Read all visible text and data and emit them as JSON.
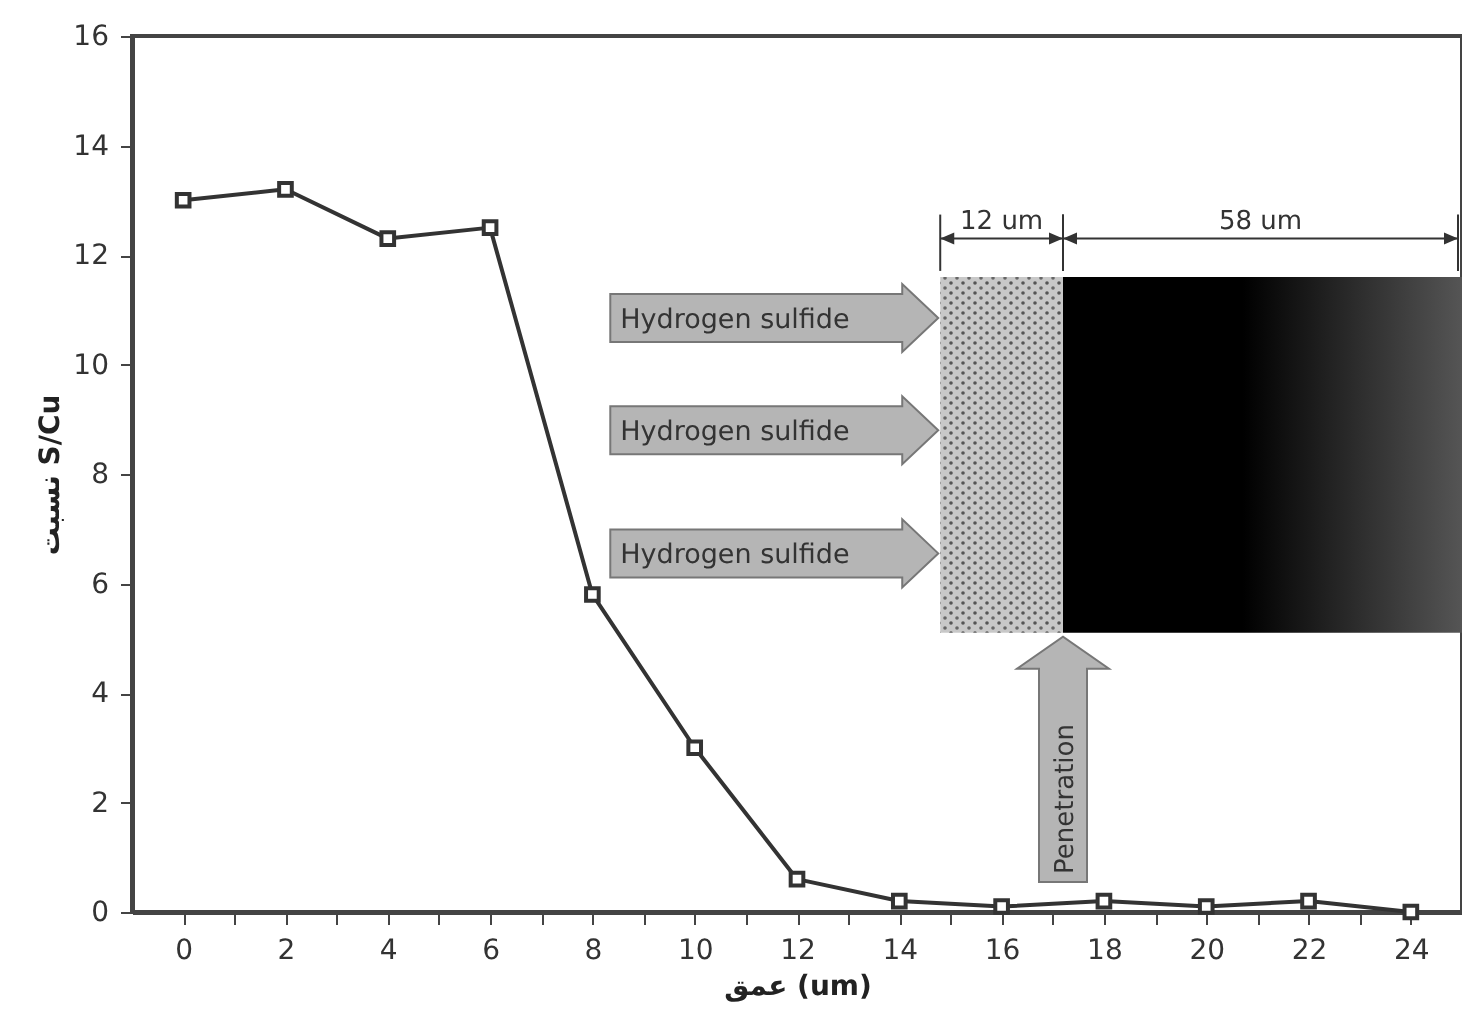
{
  "chart_data": {
    "type": "line",
    "xlabel": "عمق (um)",
    "ylabel": "نسبت S/Cu",
    "x": [
      0,
      2,
      4,
      6,
      8,
      10,
      12,
      14,
      16,
      18,
      20,
      22,
      24
    ],
    "series": [
      {
        "color": "#333333",
        "values": [
          13.0,
          13.2,
          12.3,
          12.5,
          5.8,
          3.0,
          0.6,
          0.2,
          0.1,
          0.2,
          0.1,
          0.2,
          0.0
        ]
      }
    ],
    "xlim": [
      -1,
      25
    ],
    "ylim": [
      0,
      16
    ],
    "xticks": [
      0,
      {
        "value": 1,
        "label": null
      },
      2,
      {
        "value": 3,
        "label": null
      },
      4,
      {
        "value": 5,
        "label": null
      },
      6,
      {
        "value": 7,
        "label": null
      },
      8,
      {
        "value": 9,
        "label": null
      },
      10,
      {
        "value": 11,
        "label": null
      },
      12,
      {
        "value": 13,
        "label": null
      },
      14,
      {
        "value": 15,
        "label": null
      },
      16,
      {
        "value": 17,
        "label": null
      },
      18,
      {
        "value": 19,
        "label": null
      },
      20,
      {
        "value": 21,
        "label": null
      },
      22,
      {
        "value": 23,
        "label": null
      },
      24
    ],
    "yticks": [
      0,
      2,
      4,
      6,
      8,
      10,
      12,
      14,
      16
    ],
    "marker": "square",
    "line_style": "solid",
    "annotations": [
      "Hydrogen sulfide",
      "Hydrogen sulfide",
      "Hydrogen sulfide",
      "12 um",
      "58 um",
      "Penetration"
    ]
  }
}
